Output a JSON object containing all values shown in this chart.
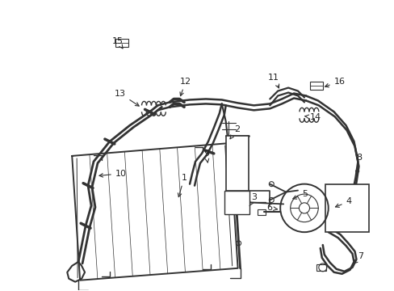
{
  "bg_color": "#ffffff",
  "line_color": "#333333",
  "label_color": "#222222",
  "fig_width": 4.89,
  "fig_height": 3.6,
  "dpi": 100,
  "lw_main": 1.3,
  "lw_hose": 1.1,
  "lw_thin": 0.7,
  "font_size": 8.0
}
